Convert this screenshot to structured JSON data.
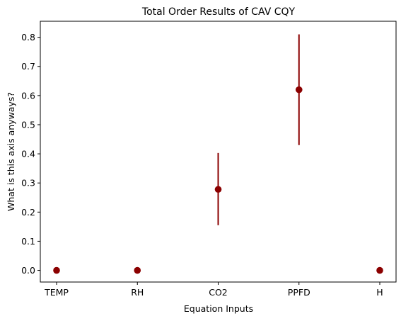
{
  "chart_data": {
    "type": "scatter",
    "title": "Total Order Results of CAV CQY",
    "xlabel": "Equation Inputs",
    "ylabel": "What is this axis anyways?",
    "categories": [
      "TEMP",
      "RH",
      "CO2",
      "PPFD",
      "H"
    ],
    "series": [
      {
        "values": [
          0.0,
          0.0,
          0.278,
          0.62,
          0.0
        ],
        "error_low": [
          0.0,
          0.0,
          0.155,
          0.43,
          0.0
        ],
        "error_high": [
          0.0,
          0.0,
          0.403,
          0.81,
          0.0
        ]
      }
    ],
    "ylim": [
      -0.04,
      0.855
    ],
    "yticks": [
      "0.0",
      "0.1",
      "0.2",
      "0.3",
      "0.4",
      "0.5",
      "0.6",
      "0.7",
      "0.8"
    ],
    "grid": false,
    "marker_color": "#8b0000"
  }
}
